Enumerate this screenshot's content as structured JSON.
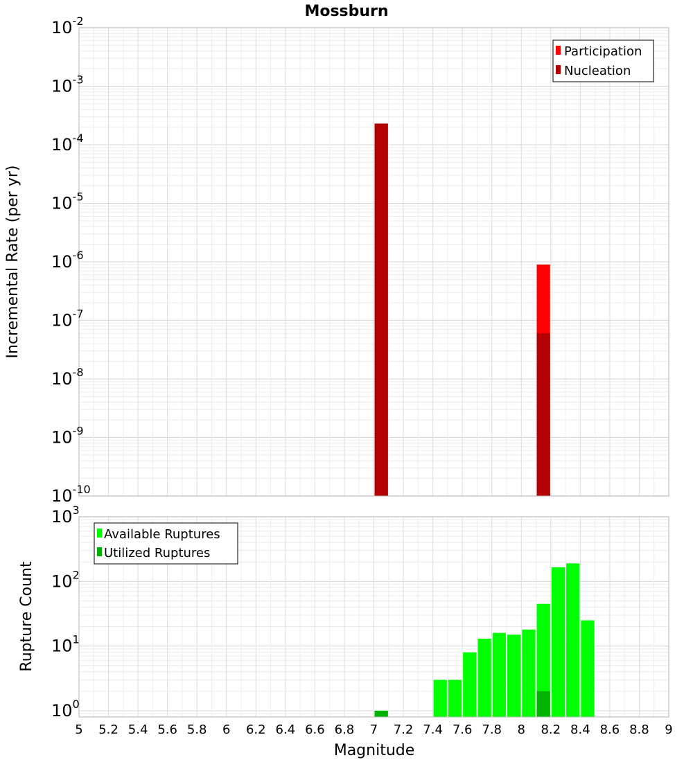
{
  "chart_data": [
    {
      "type": "bar",
      "title": "Mossburn",
      "xlabel": "",
      "ylabel": "Incremental Rate (per yr)",
      "xlim": [
        5,
        9
      ],
      "ylim": [
        1e-10,
        0.01
      ],
      "yscale": "log",
      "grid": true,
      "legend": {
        "placement": "top-right",
        "entries": [
          "Participation",
          "Nucleation"
        ]
      },
      "bar_width": 0.1,
      "series": [
        {
          "name": "Participation",
          "color": "#ff0000",
          "x": [
            7.05,
            8.15
          ],
          "values": [
            0.00023,
            9e-07
          ]
        },
        {
          "name": "Nucleation",
          "color": "#b30000",
          "x": [
            7.05,
            8.15
          ],
          "values": [
            0.00023,
            6e-08
          ]
        }
      ]
    },
    {
      "type": "bar",
      "title": "",
      "xlabel": "Magnitude",
      "ylabel": "Rupture Count",
      "xlim": [
        5,
        9
      ],
      "ylim": [
        0.8,
        1000
      ],
      "yscale": "log",
      "grid": true,
      "x_ticks": [
        "5",
        "5.2",
        "5.4",
        "5.6",
        "5.8",
        "6",
        "6.2",
        "6.4",
        "6.6",
        "6.8",
        "7",
        "7.2",
        "7.4",
        "7.6",
        "7.8",
        "8",
        "8.2",
        "8.4",
        "8.6",
        "8.8",
        "9"
      ],
      "legend": {
        "placement": "top-left",
        "entries": [
          "Available Ruptures",
          "Utilized Ruptures"
        ]
      },
      "bar_width": 0.1,
      "series": [
        {
          "name": "Available Ruptures",
          "color": "#00ff00",
          "x": [
            7.05,
            7.45,
            7.55,
            7.65,
            7.75,
            7.85,
            7.95,
            8.05,
            8.15,
            8.25,
            8.35,
            8.45
          ],
          "values": [
            1,
            3,
            3,
            8,
            13,
            16,
            15,
            18,
            45,
            165,
            190,
            25
          ]
        },
        {
          "name": "Utilized Ruptures",
          "color": "#00b300",
          "x": [
            7.05,
            8.15
          ],
          "values": [
            1,
            2
          ]
        }
      ]
    }
  ]
}
